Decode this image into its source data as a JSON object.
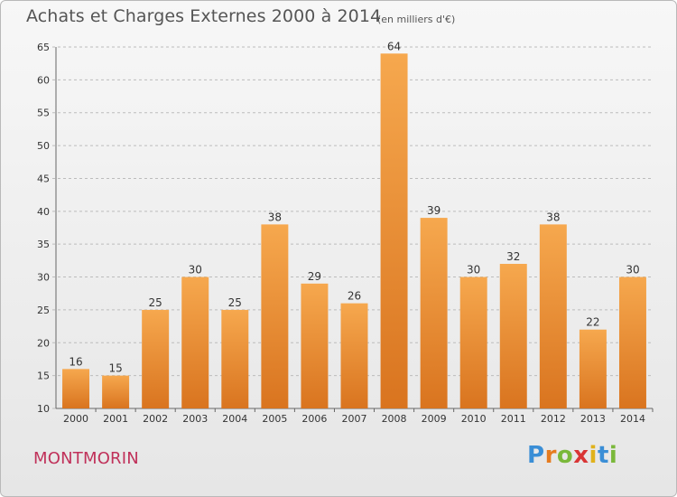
{
  "header": {
    "title": "Achats et Charges Externes 2000 à 2014",
    "subtitle": "(en milliers d'€)"
  },
  "footer": {
    "commune": "MONTMORIN",
    "logo_text": "Proxiti"
  },
  "colors": {
    "bar_light": "#f6a84e",
    "bar_dark": "#d9741f",
    "grid": "#bcbcbc",
    "axis_text": "#333333",
    "commune_text": "#c0315a"
  },
  "chart_data": {
    "type": "bar",
    "title": "Achats et Charges Externes 2000 à 2014",
    "subtitle": "(en milliers d'€)",
    "categories": [
      "2000",
      "2001",
      "2002",
      "2003",
      "2004",
      "2005",
      "2006",
      "2007",
      "2008",
      "2009",
      "2010",
      "2011",
      "2012",
      "2013",
      "2014"
    ],
    "values": [
      16,
      15,
      25,
      30,
      25,
      38,
      29,
      26,
      64,
      39,
      30,
      32,
      38,
      22,
      30
    ],
    "xlabel": "",
    "ylabel": "",
    "ylim": [
      10,
      65
    ],
    "yticks": [
      10,
      15,
      20,
      25,
      30,
      35,
      40,
      45,
      50,
      55,
      60,
      65
    ],
    "grid": true,
    "data_labels": true
  }
}
